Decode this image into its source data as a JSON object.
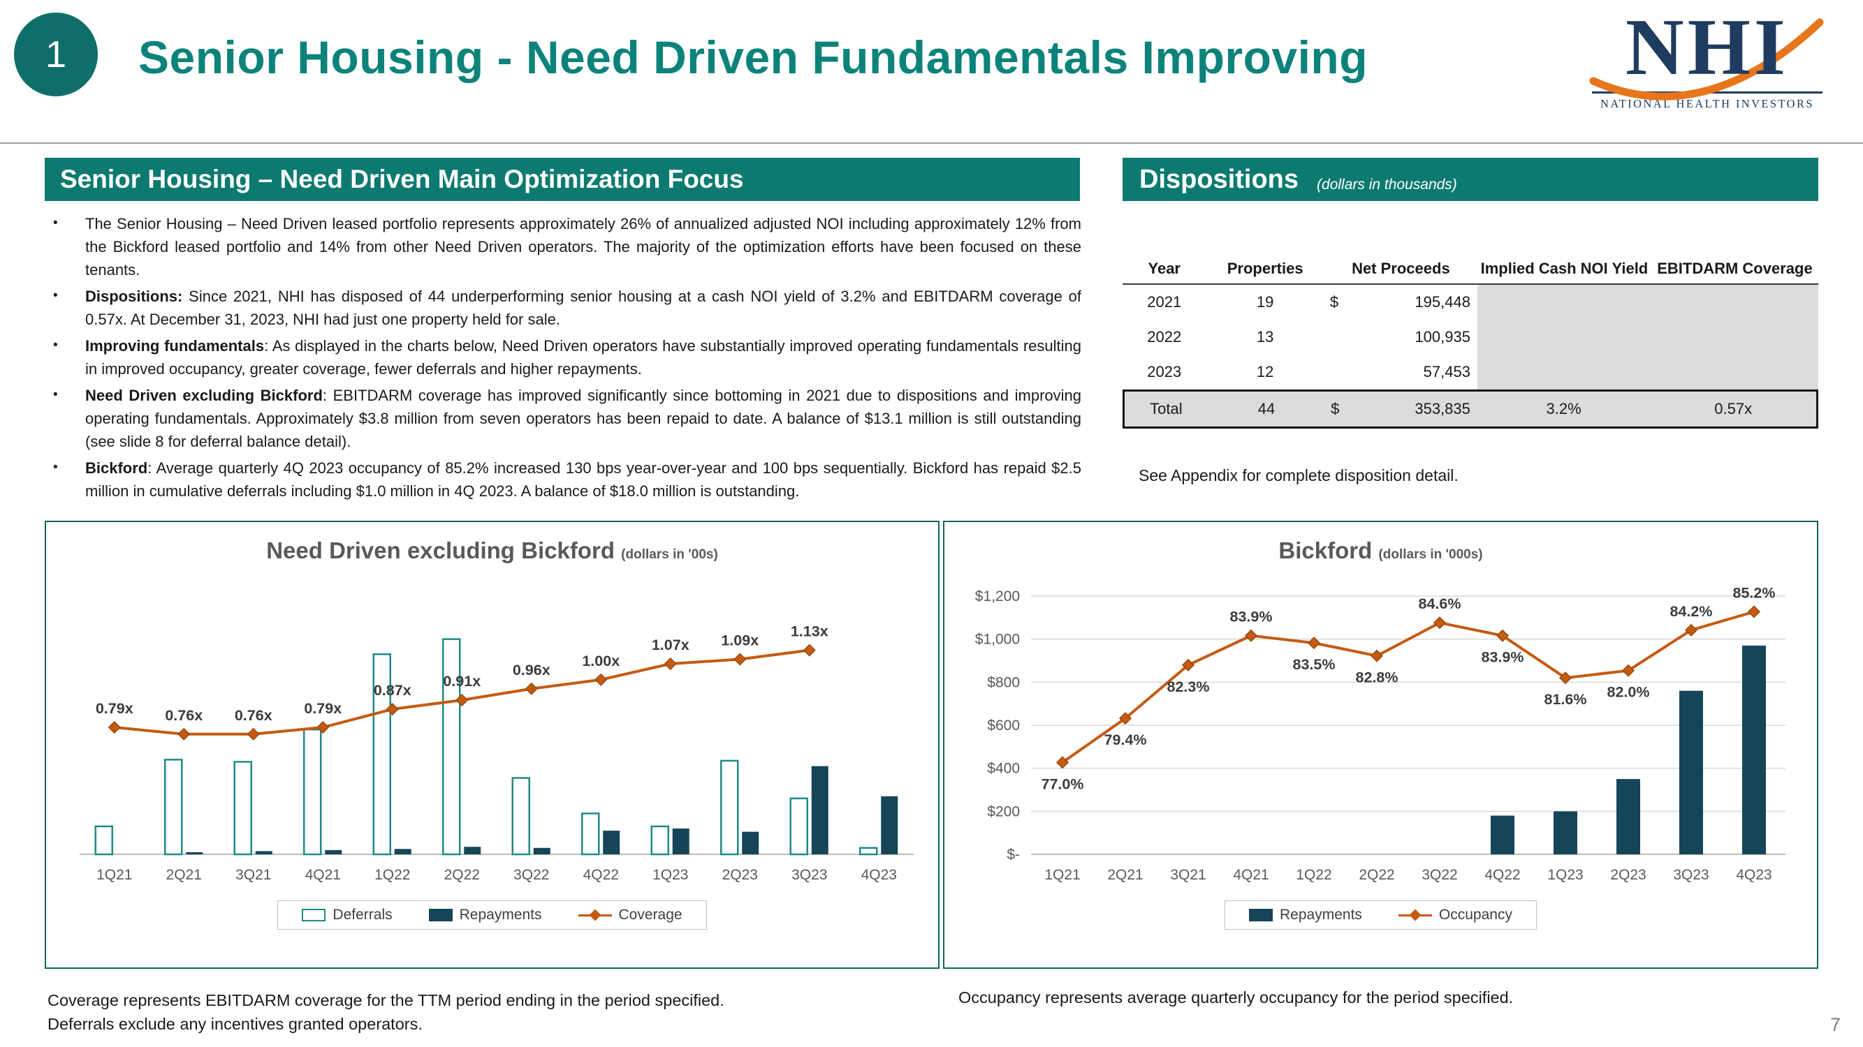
{
  "slide": {
    "badge": "1",
    "title": "Senior Housing - Need Driven Fundamentals Improving",
    "page_number": "7"
  },
  "logo": {
    "monogram": "NHI",
    "caption": "NATIONAL HEALTH INVESTORS"
  },
  "optimization": {
    "header": "Senior Housing – Need Driven Main Optimization Focus",
    "bullets": [
      {
        "lead": "",
        "text": "The Senior Housing – Need Driven leased portfolio represents approximately 26% of annualized adjusted NOI including approximately 12% from the Bickford leased portfolio and 14% from other Need Driven operators.  The majority of the optimization efforts have been focused on these tenants."
      },
      {
        "lead": "Dispositions:",
        "text": "  Since 2021, NHI has disposed of 44 underperforming senior housing at a cash NOI yield of 3.2% and EBITDARM coverage of 0.57x.  At December 31, 2023, NHI had just one property held for sale."
      },
      {
        "lead": "Improving fundamentals",
        "text": ":  As displayed in the charts below, Need Driven operators have substantially improved operating fundamentals resulting in improved occupancy, greater coverage, fewer deferrals and higher repayments."
      },
      {
        "lead": "Need Driven excluding Bickford",
        "text": ":  EBITDARM coverage has improved significantly since bottoming in 2021 due to dispositions and improving operating fundamentals.  Approximately $3.8 million from seven operators has been repaid to date.  A balance of $13.1 million is still outstanding (see slide 8 for deferral balance detail)."
      },
      {
        "lead": "Bickford",
        "text": ":  Average quarterly 4Q 2023 occupancy of 85.2% increased 130 bps year-over-year and 100 bps sequentially.  Bickford has repaid $2.5 million in cumulative deferrals including $1.0 million in 4Q 2023.  A balance of $18.0 million is outstanding."
      }
    ]
  },
  "dispositions": {
    "header": "Dispositions",
    "header_note": "(dollars in thousands)",
    "columns": [
      "Year",
      "Properties",
      "Net Proceeds",
      "Implied Cash NOI Yield",
      "EBITDARM Coverage"
    ],
    "rows": [
      {
        "year": "2021",
        "properties": "19",
        "currency": "$",
        "net_proceeds": "195,448"
      },
      {
        "year": "2022",
        "properties": "13",
        "currency": "",
        "net_proceeds": "100,935"
      },
      {
        "year": "2023",
        "properties": "12",
        "currency": "",
        "net_proceeds": "57,453"
      }
    ],
    "total": {
      "year": "Total",
      "properties": "44",
      "currency": "$",
      "net_proceeds": "353,835",
      "noi_yield": "3.2%",
      "ebitdarm": "0.57x"
    },
    "footnote": "See Appendix for complete disposition detail."
  },
  "chart_data": [
    {
      "type": "bar",
      "overlay": "line",
      "title": "Need Driven excluding Bickford",
      "units_label": "(dollars in '00s)",
      "categories": [
        "1Q21",
        "2Q21",
        "3Q21",
        "4Q21",
        "1Q22",
        "2Q22",
        "3Q22",
        "4Q22",
        "1Q23",
        "2Q23",
        "3Q23",
        "4Q23"
      ],
      "series": [
        {
          "name": "Deferrals",
          "kind": "bar",
          "bar_style": "outline",
          "color": "#1e8a84",
          "values": [
            130,
            440,
            430,
            580,
            930,
            1000,
            355,
            190,
            130,
            435,
            260,
            30
          ]
        },
        {
          "name": "Repayments",
          "kind": "bar",
          "bar_style": "solid",
          "color": "#16455a",
          "values": [
            0,
            10,
            15,
            20,
            25,
            35,
            30,
            110,
            120,
            105,
            410,
            270
          ]
        },
        {
          "name": "Coverage",
          "kind": "line",
          "color": "#c55a11",
          "values": [
            0.79,
            0.76,
            0.76,
            0.79,
            0.87,
            0.91,
            0.96,
            1.0,
            1.07,
            1.09,
            1.13
          ],
          "labels": [
            "0.79x",
            "0.76x",
            "0.76x",
            "0.79x",
            "0.87x",
            "0.91x",
            "0.96x",
            "1.00x",
            "1.07x",
            "1.09x",
            "1.13x"
          ]
        }
      ],
      "ylim": [
        0,
        1200
      ],
      "y_axis_visible": false,
      "grid": false,
      "legend_position": "bottom",
      "bar_values_estimated": true
    },
    {
      "type": "bar",
      "overlay": "line",
      "title": "Bickford",
      "units_label": "(dollars in '000s)",
      "categories": [
        "1Q21",
        "2Q21",
        "3Q21",
        "4Q21",
        "1Q22",
        "2Q22",
        "3Q22",
        "4Q22",
        "1Q23",
        "2Q23",
        "3Q23",
        "4Q23"
      ],
      "series": [
        {
          "name": "Repayments",
          "kind": "bar",
          "bar_style": "solid",
          "color": "#16455a",
          "values": [
            0,
            0,
            0,
            0,
            0,
            0,
            0,
            180,
            200,
            350,
            760,
            970
          ]
        },
        {
          "name": "Occupancy",
          "kind": "line",
          "color": "#c55a11",
          "values": [
            77.0,
            79.4,
            82.3,
            83.9,
            83.5,
            82.8,
            84.6,
            83.9,
            81.6,
            82.0,
            84.2,
            85.2
          ],
          "labels": [
            "77.0%",
            "79.4%",
            "82.3%",
            "83.9%",
            "83.5%",
            "82.8%",
            "84.6%",
            "83.9%",
            "81.6%",
            "82.0%",
            "84.2%",
            "85.2%"
          ],
          "label_above": [
            false,
            false,
            false,
            true,
            false,
            false,
            true,
            false,
            false,
            false,
            true,
            true
          ]
        }
      ],
      "ylim": [
        0,
        1200
      ],
      "yticks": [
        {
          "v": 0,
          "label": "$-"
        },
        {
          "v": 200,
          "label": "$200"
        },
        {
          "v": 400,
          "label": "$400"
        },
        {
          "v": 600,
          "label": "$600"
        },
        {
          "v": 800,
          "label": "$800"
        },
        {
          "v": 1000,
          "label": "$1,000"
        },
        {
          "v": 1200,
          "label": "$1,200"
        }
      ],
      "y_axis_visible": true,
      "grid": true,
      "legend_position": "bottom",
      "bar_values_estimated": true
    }
  ],
  "footnotes": {
    "left_line1": "Coverage represents EBITDARM coverage for the TTM period ending in the period specified.",
    "left_line2": "Deferrals exclude any incentives granted operators.",
    "right": "Occupancy represents average quarterly occupancy for the period specified."
  },
  "colors": {
    "teal_banner": "#0d7a70",
    "title_teal": "#0c837a",
    "repayments_bar": "#16455a",
    "deferrals_outline": "#1e8a84",
    "line_orange": "#c55a11",
    "table_shade": "#dcdcdc",
    "logo_navy": "#1f3c60",
    "logo_orange": "#e8751a"
  }
}
